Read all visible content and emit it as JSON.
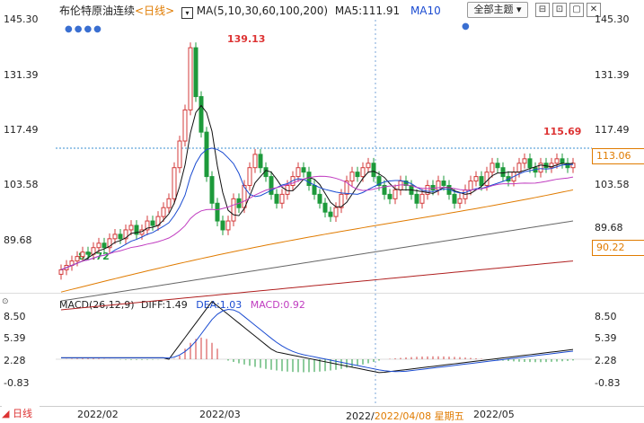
{
  "header": {
    "instrument": "布伦特原油连续",
    "period": "<日线>",
    "ma_text": "MA(5,10,30,60,100,200)",
    "ma5_text": "MA5:111.91",
    "ma10_text": "MA10",
    "theme_button": "全部主题",
    "icons": [
      "ma-toggle-icon",
      "minimize-icon",
      "restore-icon",
      "maximize-icon",
      "close-icon"
    ]
  },
  "price_axis": {
    "left": [
      "145.30",
      "131.39",
      "117.49",
      "103.58",
      "89.68"
    ],
    "right": [
      "145.30",
      "131.39",
      "117.49",
      "103.58",
      "89.68"
    ]
  },
  "price_tags": {
    "last": "113.06",
    "ma_level": "90.22"
  },
  "annotations": {
    "high": "139.13",
    "low": "87.72",
    "recent_high": "115.69"
  },
  "macd": {
    "title": "MACD(26,12,9)",
    "diff": "DIFF:1.49",
    "dea": "DEA:1.03",
    "macd": "MACD:0.92",
    "axis_left": [
      "8.50",
      "5.39",
      "2.28",
      "-0.83"
    ],
    "axis_right": [
      "8.50",
      "5.39",
      "2.28",
      "-0.83"
    ]
  },
  "footer": {
    "period_button": "日线",
    "dates": [
      "2022/02",
      "2022/03",
      "2022/",
      "2022/04/08 星期五",
      "2022/05"
    ]
  },
  "colors": {
    "up": "#d33b3b",
    "down": "#1d9a3b",
    "ma5": "#111111",
    "ma10": "#1a4bd1",
    "ma30": "#c03cc0",
    "ma60": "#e07b00",
    "ma100": "#666666",
    "ma200": "#b02020",
    "crosshair": "#1a6fd1"
  }
}
